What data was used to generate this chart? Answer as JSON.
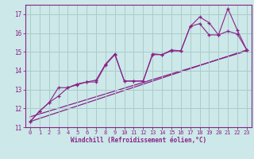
{
  "xlabel": "Windchill (Refroidissement éolien,°C)",
  "background_color": "#cce8e8",
  "grid_color": "#aacccc",
  "line_color": "#882288",
  "xlim": [
    -0.5,
    23.5
  ],
  "ylim": [
    11.0,
    17.5
  ],
  "xticks": [
    0,
    1,
    2,
    3,
    4,
    5,
    6,
    7,
    8,
    9,
    10,
    11,
    12,
    13,
    14,
    15,
    16,
    17,
    18,
    19,
    20,
    21,
    22,
    23
  ],
  "yticks": [
    11,
    12,
    13,
    14,
    15,
    16,
    17
  ],
  "curve_x": [
    0,
    1,
    2,
    3,
    4,
    5,
    6,
    7,
    8,
    9,
    10,
    11,
    12,
    13,
    14,
    15,
    16,
    17,
    18,
    19,
    20,
    21,
    22,
    23
  ],
  "curve_y": [
    11.3,
    11.85,
    12.3,
    13.1,
    13.1,
    13.3,
    13.4,
    13.5,
    14.35,
    14.9,
    13.45,
    13.45,
    13.45,
    14.85,
    14.85,
    15.05,
    15.05,
    16.35,
    16.5,
    15.9,
    15.9,
    16.1,
    15.95,
    15.1
  ],
  "curve2_x": [
    0,
    1,
    2,
    3,
    4,
    5,
    6,
    7,
    8,
    9,
    10,
    11,
    12,
    13,
    14,
    15,
    16,
    17,
    18,
    19,
    20,
    21,
    22,
    23
  ],
  "curve2_y": [
    11.3,
    11.85,
    12.3,
    12.65,
    13.1,
    13.25,
    13.4,
    13.4,
    14.3,
    14.85,
    13.45,
    13.45,
    13.45,
    14.9,
    14.85,
    15.1,
    15.05,
    16.35,
    16.85,
    16.55,
    15.9,
    17.3,
    16.15,
    15.1
  ],
  "regline1_x": [
    0,
    23
  ],
  "regline1_y": [
    11.55,
    15.05
  ],
  "regline2_x": [
    0,
    23
  ],
  "regline2_y": [
    11.3,
    15.1
  ]
}
